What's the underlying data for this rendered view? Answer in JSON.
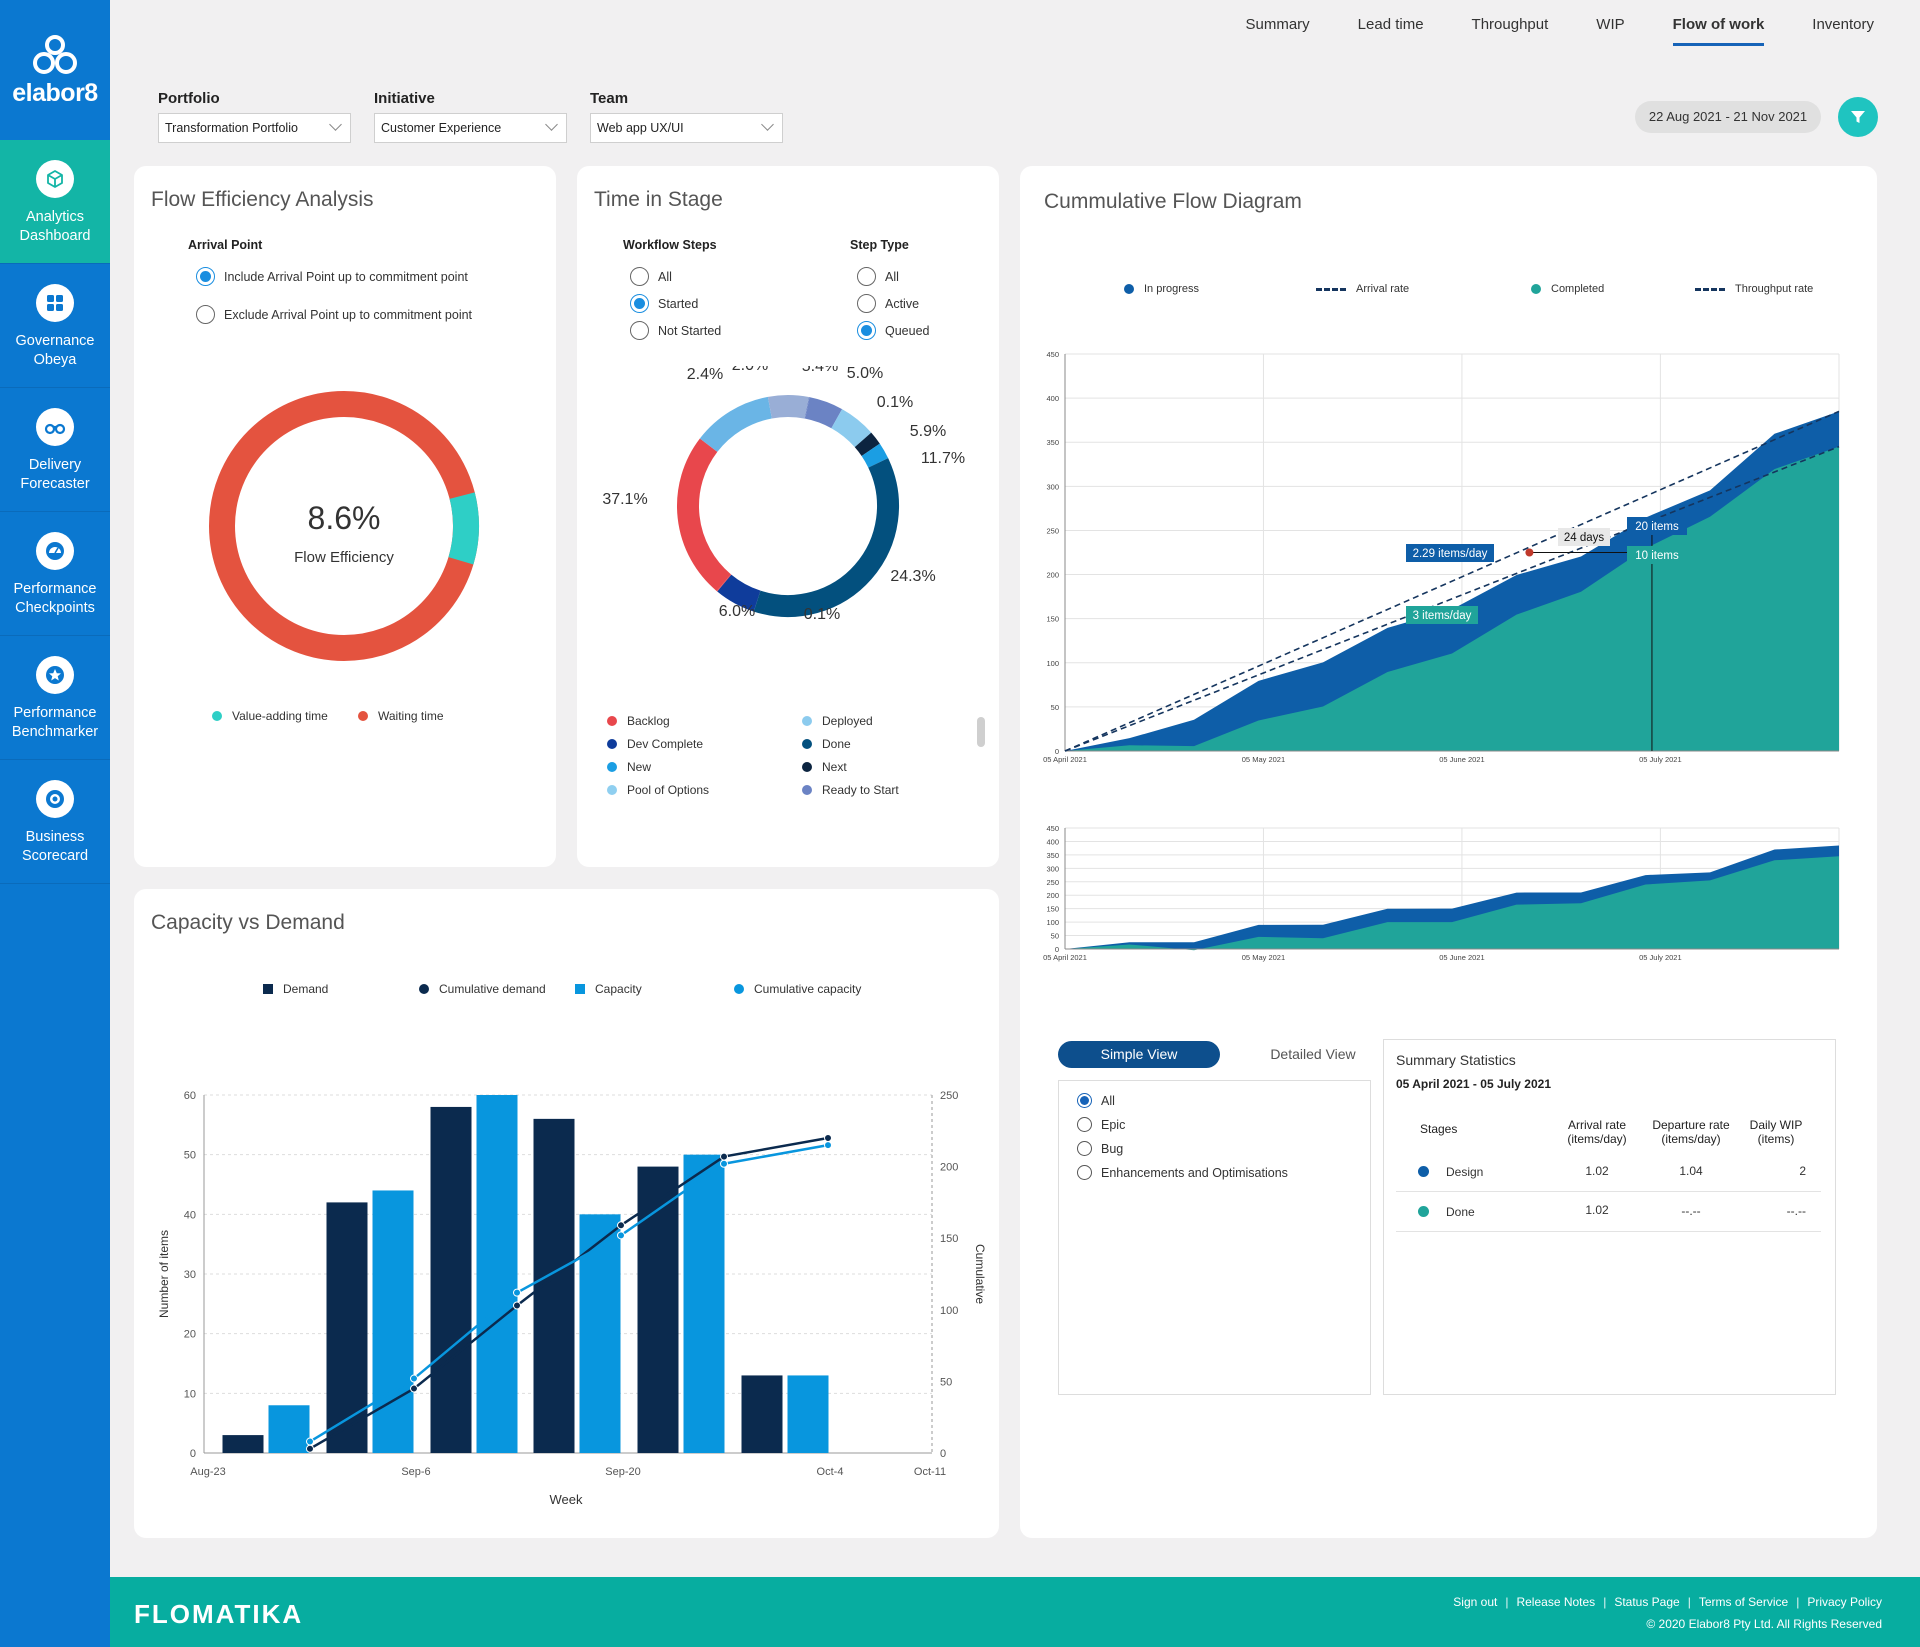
{
  "brand": {
    "logo_text": "elabor8",
    "footer_brand": "FLOMATIKA"
  },
  "sidebar": {
    "items": [
      {
        "label": "Analytics Dashboard",
        "icon": "cube-icon",
        "active": true
      },
      {
        "label": "Governance Obeya",
        "icon": "grid-icon",
        "active": false
      },
      {
        "label": "Delivery Forecaster",
        "icon": "binoculars-icon",
        "active": false
      },
      {
        "label": "Performance Checkpoints",
        "icon": "gauge-icon",
        "active": false
      },
      {
        "label": "Performance Benchmarker",
        "icon": "star-icon",
        "active": false
      },
      {
        "label": "Business Scorecard",
        "icon": "target-icon",
        "active": false
      }
    ]
  },
  "topnav": {
    "tabs": [
      "Summary",
      "Lead time",
      "Throughput",
      "WIP",
      "Flow of work",
      "Inventory"
    ],
    "active": "Flow of work"
  },
  "filters": {
    "portfolio": {
      "label": "Portfolio",
      "value": "Transformation Portfolio"
    },
    "initiative": {
      "label": "Initiative",
      "value": "Customer Experience"
    },
    "team": {
      "label": "Team",
      "value": "Web app UX/UI"
    }
  },
  "date_range": "22 Aug 2021 - 21 Nov 2021",
  "flow_efficiency": {
    "title": "Flow Efficiency Analysis",
    "arrival_label": "Arrival Point",
    "options": [
      "Include Arrival Point up to commitment point",
      "Exclude Arrival Point up to commitment point"
    ],
    "selected": 0,
    "value": "8.6%",
    "value_label": "Flow Efficiency",
    "legend": [
      {
        "label": "Value-adding time",
        "color": "#2ecfc6"
      },
      {
        "label": "Waiting time",
        "color": "#e4533f"
      }
    ]
  },
  "time_in_stage": {
    "title": "Time in Stage",
    "workflow_label": "Workflow Steps",
    "workflow_options": [
      "All",
      "Started",
      "Not Started"
    ],
    "workflow_selected": 1,
    "step_label": "Step Type",
    "step_options": [
      "All",
      "Active",
      "Queued"
    ],
    "step_selected": 2,
    "donut_labels": [
      "2.4%",
      "2.0%",
      "5.4%",
      "5.0%",
      "0.1%",
      "5.9%",
      "11.7%",
      "24.3%",
      "0.1%",
      "6.0%",
      "37.1%"
    ],
    "legend": [
      {
        "label": "Backlog",
        "color": "#e8474c"
      },
      {
        "label": "Deployed",
        "color": "#8ccbee"
      },
      {
        "label": "Dev Complete",
        "color": "#0f3c9b"
      },
      {
        "label": "Done",
        "color": "#03507e"
      },
      {
        "label": "New",
        "color": "#1b9ee3"
      },
      {
        "label": "Next",
        "color": "#0c2440"
      },
      {
        "label": "Pool of Options",
        "color": "#8fcff0"
      },
      {
        "label": "Ready to Start",
        "color": "#6b83c4"
      }
    ]
  },
  "capacity": {
    "title": "Capacity vs Demand",
    "legend": [
      "Demand",
      "Cumulative demand",
      "Capacity",
      "Cumulative capacity"
    ],
    "colors": {
      "demand": "#0b2a4e",
      "capacity": "#0896de"
    },
    "chart_data": {
      "type": "bar",
      "xlabel": "Week",
      "ylabel": "Number of items",
      "y2label": "Cumulative",
      "ylim": [
        0,
        60
      ],
      "y2lim": [
        0,
        250
      ],
      "yticks": [
        "0",
        "10",
        "20",
        "30",
        "40",
        "50",
        "60"
      ],
      "y2ticks": [
        "0",
        "50",
        "100",
        "150",
        "200",
        "250"
      ],
      "xticks": [
        "Aug-23",
        "Sep-6",
        "Sep-20",
        "Oct-4",
        "Oct-11"
      ],
      "series": [
        {
          "name": "Demand",
          "values": [
            3,
            42,
            58,
            56,
            48,
            13
          ]
        },
        {
          "name": "Capacity",
          "values": [
            8,
            44,
            60,
            40,
            50,
            13
          ]
        },
        {
          "name": "Cumulative demand",
          "values": [
            3,
            45,
            103,
            159,
            207,
            220
          ]
        },
        {
          "name": "Cumulative capacity",
          "values": [
            8,
            52,
            112,
            152,
            202,
            215
          ]
        }
      ]
    }
  },
  "cfd": {
    "title": "Cummulative Flow Diagram",
    "legend": [
      "In progress",
      "Arrival rate",
      "Completed",
      "Throughput rate"
    ],
    "colors": {
      "in_progress": "#0e5ea8",
      "completed": "#20a49a",
      "rate_line": "#15355e"
    },
    "annotations": {
      "arrival_rate": "2.29 items/day",
      "throughput_rate": "3 items/day",
      "days": "24 days",
      "items_top": "20 items",
      "items_bottom": "10 items"
    },
    "chart_data": {
      "type": "area",
      "ylim": [
        0,
        450
      ],
      "yticks": [
        "0",
        "50",
        "100",
        "150",
        "200",
        "250",
        "300",
        "350",
        "400",
        "450"
      ],
      "xticks": [
        "05 April 2021",
        "05 May 2021",
        "05 June 2021",
        "05 July 2021"
      ],
      "x_days": [
        0,
        10,
        20,
        30,
        40,
        50,
        60,
        70,
        80,
        90,
        100,
        110,
        120
      ],
      "series": [
        {
          "name": "In progress",
          "values": [
            0,
            10,
            40,
            75,
            105,
            135,
            165,
            195,
            225,
            260,
            300,
            355,
            385
          ]
        },
        {
          "name": "Completed",
          "values": [
            0,
            2,
            10,
            30,
            55,
            85,
            115,
            150,
            185,
            225,
            270,
            315,
            345
          ]
        }
      ]
    }
  },
  "views": {
    "simple": "Simple View",
    "detailed": "Detailed View",
    "active": "Simple View",
    "filters": [
      "All",
      "Epic",
      "Bug",
      "Enhancements and Optimisations"
    ],
    "selected": 0
  },
  "summary_stats": {
    "title": "Summary Statistics",
    "range": "05 April 2021 - 05 July 2021",
    "headers": [
      "Stages",
      "Arrival rate (items/day)",
      "Departure rate (items/day)",
      "Daily WIP (items)"
    ],
    "rows": [
      {
        "stage": "Design",
        "color": "#0e5ea8",
        "arrival": "1.02",
        "departure": "1.04",
        "wip": "2"
      },
      {
        "stage": "Done",
        "color": "#20a49a",
        "arrival": "1.02",
        "departure": "--.--",
        "wip": "--.--"
      }
    ]
  },
  "footer": {
    "links": [
      "Sign out",
      "Release Notes",
      "Status Page",
      "Terms of Service",
      "Privacy Policy"
    ],
    "copyright": "© 2020 Elabor8 Pty Ltd. All Rights Reserved"
  }
}
